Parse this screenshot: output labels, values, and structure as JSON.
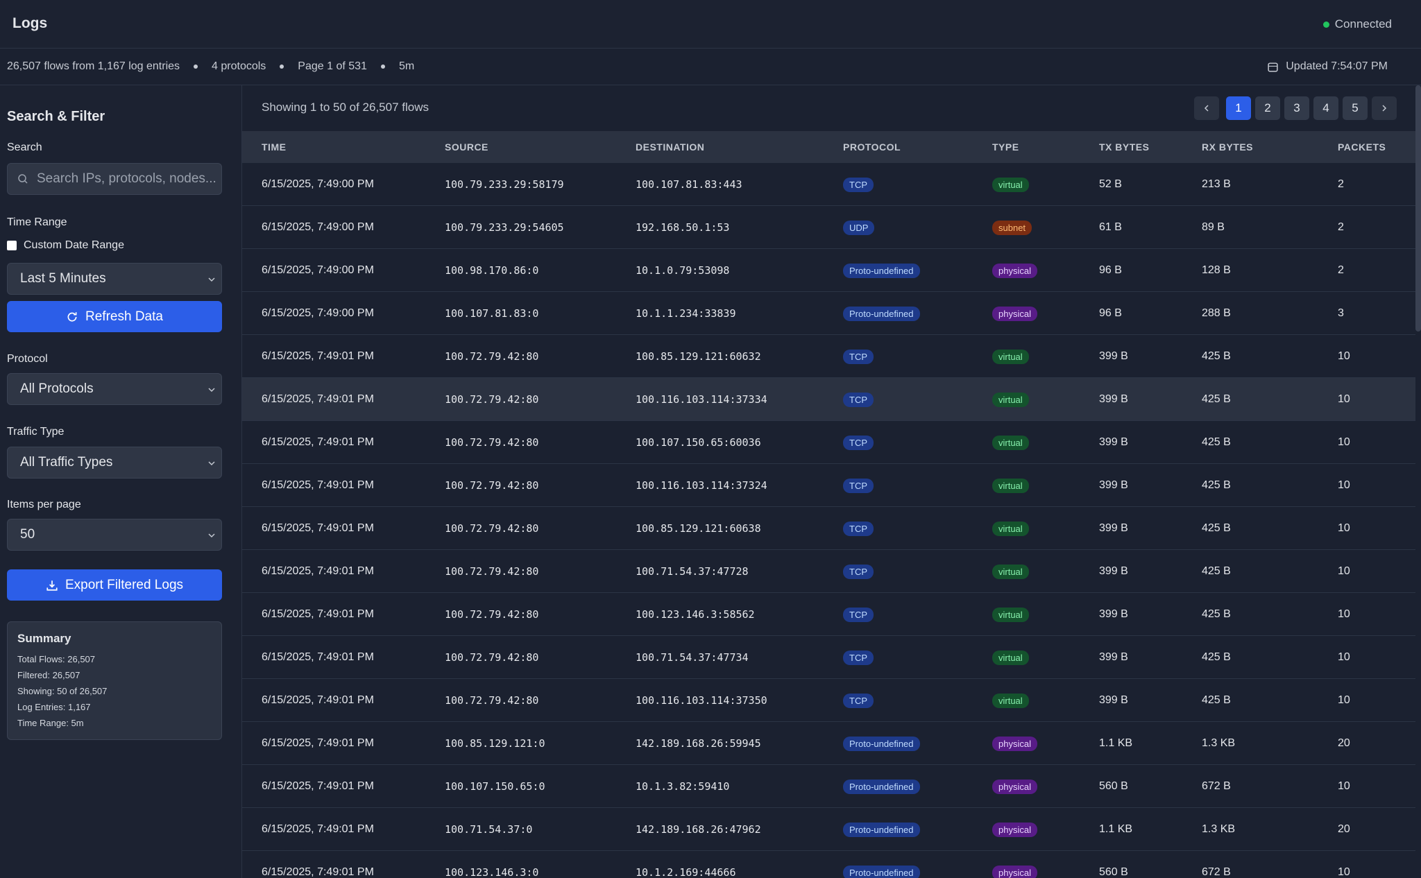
{
  "header": {
    "title": "Logs",
    "status": "Connected"
  },
  "stats": {
    "items": [
      "26,507 flows from 1,167 log entries",
      "4 protocols",
      "Page 1 of 531",
      "5m"
    ],
    "updated": "Updated 7:54:07 PM"
  },
  "sidebar": {
    "title": "Search & Filter",
    "search_label": "Search",
    "search_placeholder": "Search IPs, protocols, nodes...",
    "time_label": "Time Range",
    "custom_range": "Custom Date Range",
    "time_value": "Last 5 Minutes",
    "refresh": "Refresh Data",
    "protocol_label": "Protocol",
    "protocol_value": "All Protocols",
    "traffic_label": "Traffic Type",
    "traffic_value": "All Traffic Types",
    "items_label": "Items per page",
    "items_value": "50",
    "export": "Export Filtered Logs",
    "summary": {
      "title": "Summary",
      "lines": [
        "Total Flows: 26,507",
        "Filtered: 26,507",
        "Showing: 50 of 26,507",
        "Log Entries: 1,167",
        "Time Range: 5m"
      ]
    }
  },
  "table": {
    "showing": "Showing 1 to 50 of 26,507 flows",
    "pages": [
      "1",
      "2",
      "3",
      "4",
      "5"
    ],
    "columns": [
      "TIME",
      "SOURCE",
      "DESTINATION",
      "PROTOCOL",
      "TYPE",
      "TX BYTES",
      "RX BYTES",
      "PACKETS"
    ],
    "rows": [
      [
        "6/15/2025, 7:49:00 PM",
        "100.79.233.29:58179",
        "100.107.81.83:443",
        "TCP",
        "virtual",
        "52 B",
        "213 B",
        "2"
      ],
      [
        "6/15/2025, 7:49:00 PM",
        "100.79.233.29:54605",
        "192.168.50.1:53",
        "UDP",
        "subnet",
        "61 B",
        "89 B",
        "2"
      ],
      [
        "6/15/2025, 7:49:00 PM",
        "100.98.170.86:0",
        "10.1.0.79:53098",
        "Proto-undefined",
        "physical",
        "96 B",
        "128 B",
        "2"
      ],
      [
        "6/15/2025, 7:49:00 PM",
        "100.107.81.83:0",
        "10.1.1.234:33839",
        "Proto-undefined",
        "physical",
        "96 B",
        "288 B",
        "3"
      ],
      [
        "6/15/2025, 7:49:01 PM",
        "100.72.79.42:80",
        "100.85.129.121:60632",
        "TCP",
        "virtual",
        "399 B",
        "425 B",
        "10"
      ],
      [
        "6/15/2025, 7:49:01 PM",
        "100.72.79.42:80",
        "100.116.103.114:37334",
        "TCP",
        "virtual",
        "399 B",
        "425 B",
        "10"
      ],
      [
        "6/15/2025, 7:49:01 PM",
        "100.72.79.42:80",
        "100.107.150.65:60036",
        "TCP",
        "virtual",
        "399 B",
        "425 B",
        "10"
      ],
      [
        "6/15/2025, 7:49:01 PM",
        "100.72.79.42:80",
        "100.116.103.114:37324",
        "TCP",
        "virtual",
        "399 B",
        "425 B",
        "10"
      ],
      [
        "6/15/2025, 7:49:01 PM",
        "100.72.79.42:80",
        "100.85.129.121:60638",
        "TCP",
        "virtual",
        "399 B",
        "425 B",
        "10"
      ],
      [
        "6/15/2025, 7:49:01 PM",
        "100.72.79.42:80",
        "100.71.54.37:47728",
        "TCP",
        "virtual",
        "399 B",
        "425 B",
        "10"
      ],
      [
        "6/15/2025, 7:49:01 PM",
        "100.72.79.42:80",
        "100.123.146.3:58562",
        "TCP",
        "virtual",
        "399 B",
        "425 B",
        "10"
      ],
      [
        "6/15/2025, 7:49:01 PM",
        "100.72.79.42:80",
        "100.71.54.37:47734",
        "TCP",
        "virtual",
        "399 B",
        "425 B",
        "10"
      ],
      [
        "6/15/2025, 7:49:01 PM",
        "100.72.79.42:80",
        "100.116.103.114:37350",
        "TCP",
        "virtual",
        "399 B",
        "425 B",
        "10"
      ],
      [
        "6/15/2025, 7:49:01 PM",
        "100.85.129.121:0",
        "142.189.168.26:59945",
        "Proto-undefined",
        "physical",
        "1.1 KB",
        "1.3 KB",
        "20"
      ],
      [
        "6/15/2025, 7:49:01 PM",
        "100.107.150.65:0",
        "10.1.3.82:59410",
        "Proto-undefined",
        "physical",
        "560 B",
        "672 B",
        "10"
      ],
      [
        "6/15/2025, 7:49:01 PM",
        "100.71.54.37:0",
        "142.189.168.26:47962",
        "Proto-undefined",
        "physical",
        "1.1 KB",
        "1.3 KB",
        "20"
      ],
      [
        "6/15/2025, 7:49:01 PM",
        "100.123.146.3:0",
        "10.1.2.169:44666",
        "Proto-undefined",
        "physical",
        "560 B",
        "672 B",
        "10"
      ]
    ]
  }
}
